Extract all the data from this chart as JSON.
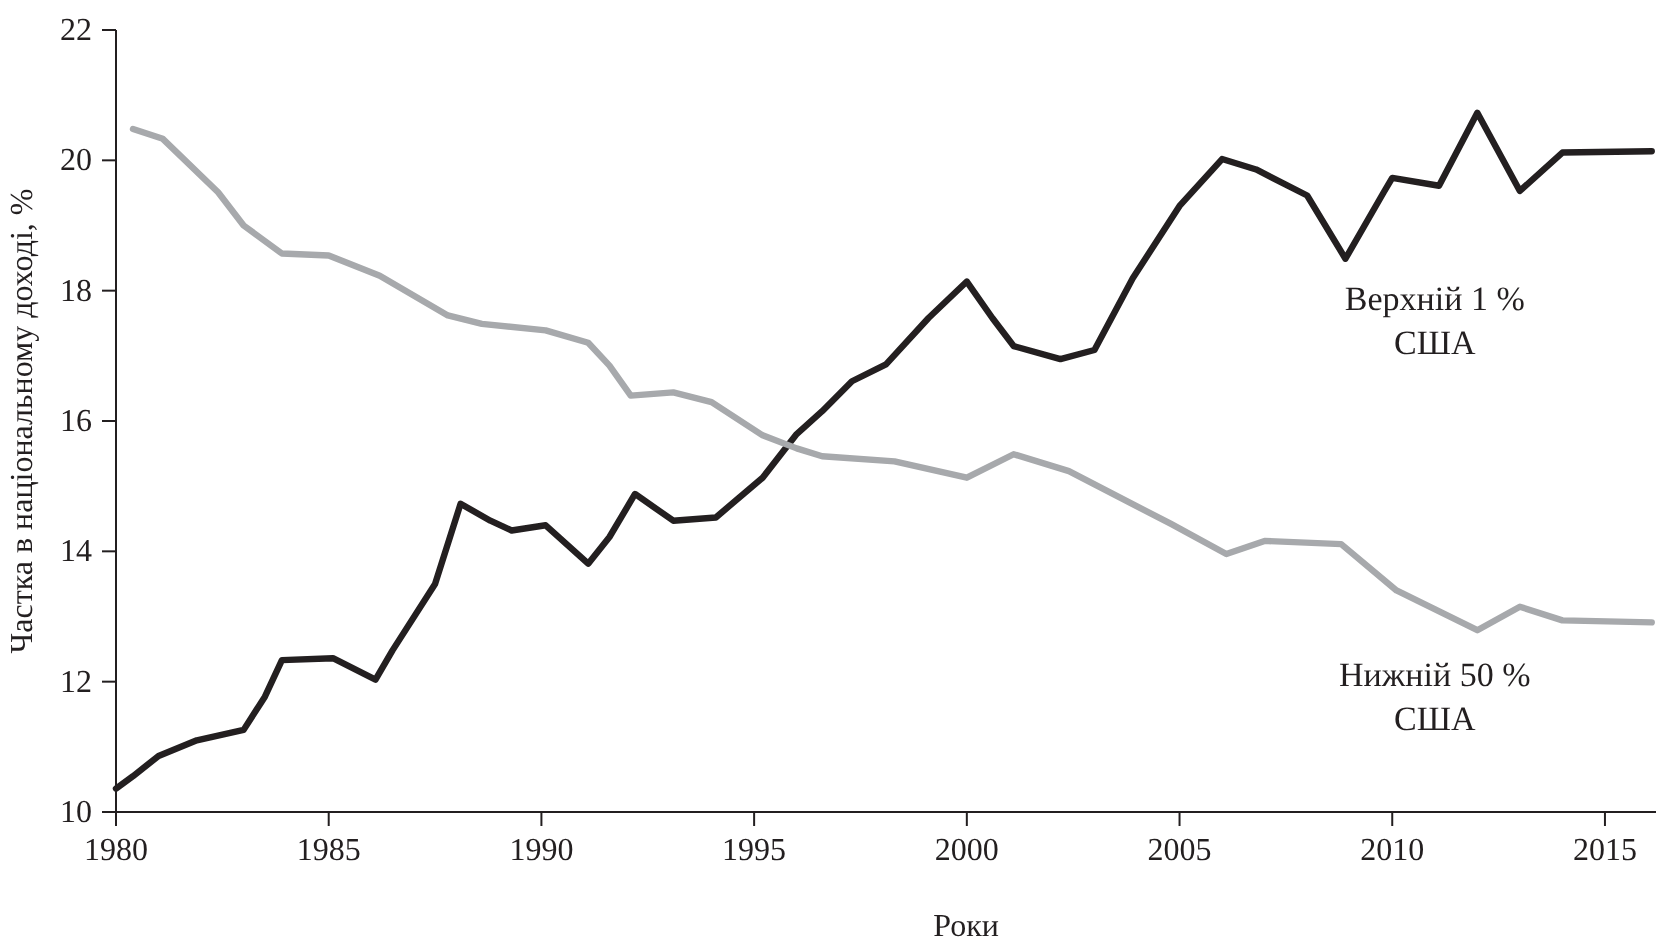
{
  "chart_data": {
    "type": "line",
    "xlabel": "Роки",
    "ylabel": "Частка в національному доході, %",
    "xlim": [
      1980,
      2016.2
    ],
    "xticks": [
      1980,
      1985,
      1990,
      1995,
      2000,
      2005,
      2010,
      2015
    ],
    "ylim": [
      10,
      22
    ],
    "yticks": [
      10,
      12,
      14,
      16,
      18,
      20,
      22
    ],
    "grid": false,
    "marker": "none",
    "line_style": "solid",
    "series": [
      {
        "name": "Верхній 1 % США",
        "color": "#231f20",
        "x": [
          1980,
          1980.4,
          1981,
          1981.9,
          1983,
          1983.5,
          1983.9,
          1985.1,
          1986.1,
          1986.5,
          1987.5,
          1988.1,
          1988.8,
          1989.3,
          1990.1,
          1991.1,
          1991.6,
          1992.2,
          1993.1,
          1994.1,
          1995.2,
          1996,
          1996.6,
          1997.3,
          1998.1,
          1999.1,
          2000,
          2000.6,
          2001.1,
          2002.2,
          2003,
          2003.9,
          2005,
          2006,
          2006.8,
          2008,
          2008.9,
          2009.8,
          2010,
          2011.1,
          2012,
          2013,
          2014,
          2016.1
        ],
        "values": [
          10.36,
          10.55,
          10.86,
          11.1,
          11.26,
          11.77,
          12.33,
          12.36,
          12.03,
          12.48,
          13.5,
          14.73,
          14.47,
          14.32,
          14.4,
          13.81,
          14.22,
          14.88,
          14.47,
          14.52,
          15.13,
          15.8,
          16.15,
          16.61,
          16.87,
          17.58,
          18.14,
          17.58,
          17.15,
          16.95,
          17.09,
          18.19,
          19.3,
          20.02,
          19.86,
          19.46,
          18.49,
          19.51,
          19.73,
          19.61,
          20.73,
          19.53,
          20.12,
          20.14
        ]
      },
      {
        "name": "Нижній 50 % США",
        "color": "#a7a9ac",
        "x": [
          1980.4,
          1981.1,
          1982.4,
          1983,
          1983.9,
          1985,
          1986.2,
          1987.8,
          1988.6,
          1990.1,
          1991.1,
          1991.6,
          1992.1,
          1993.1,
          1994,
          1995.2,
          1996,
          1996.6,
          1998.3,
          2000,
          2001.1,
          2002.4,
          2004.8,
          2006.1,
          2007,
          2008.8,
          2010.1,
          2012,
          2013,
          2014,
          2016.1
        ],
        "values": [
          20.48,
          20.33,
          19.51,
          19,
          18.57,
          18.54,
          18.23,
          17.62,
          17.49,
          17.39,
          17.2,
          16.85,
          16.39,
          16.44,
          16.29,
          15.78,
          15.58,
          15.46,
          15.38,
          15.13,
          15.49,
          15.23,
          14.42,
          13.96,
          14.16,
          14.11,
          13.4,
          12.79,
          13.15,
          12.94,
          12.91
        ]
      }
    ]
  }
}
